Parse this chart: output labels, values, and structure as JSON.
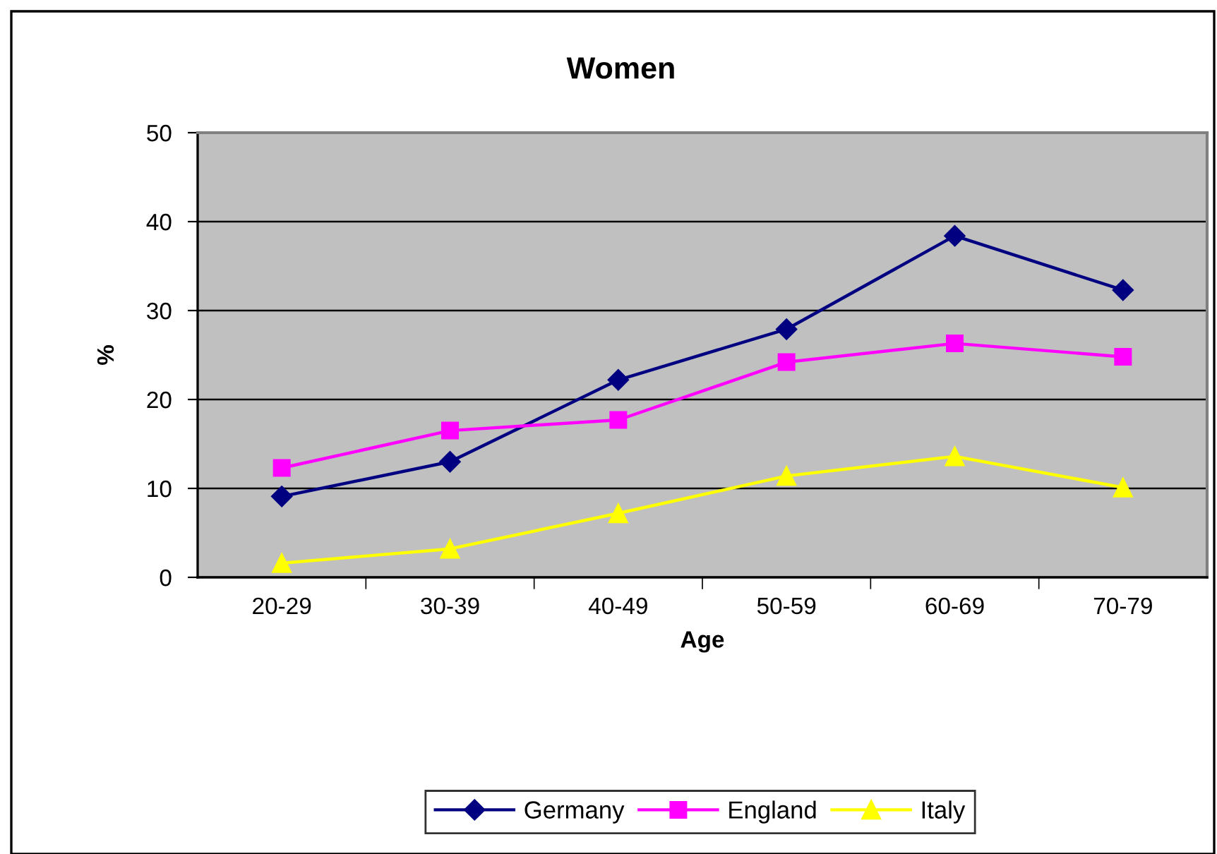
{
  "chart_data": {
    "type": "line",
    "title": "Women",
    "xlabel": "Age",
    "ylabel": "%",
    "categories": [
      "20-29",
      "30-39",
      "40-49",
      "50-59",
      "60-69",
      "70-79"
    ],
    "series": [
      {
        "name": "Germany",
        "color": "#000080",
        "marker": "diamond",
        "values": [
          9.1,
          13.0,
          22.2,
          27.9,
          38.4,
          32.3
        ]
      },
      {
        "name": "England",
        "color": "#ff00ff",
        "marker": "square",
        "values": [
          12.3,
          16.5,
          17.7,
          24.2,
          26.3,
          24.8
        ]
      },
      {
        "name": "Italy",
        "color": "#ffff00",
        "marker": "triangle",
        "values": [
          1.6,
          3.2,
          7.2,
          11.4,
          13.6,
          10.1
        ]
      }
    ],
    "ylim": [
      0,
      50
    ],
    "yticks": [
      0,
      10,
      20,
      30,
      40,
      50
    ],
    "grid": "y",
    "legend": "bottom",
    "line_style": "solid"
  }
}
